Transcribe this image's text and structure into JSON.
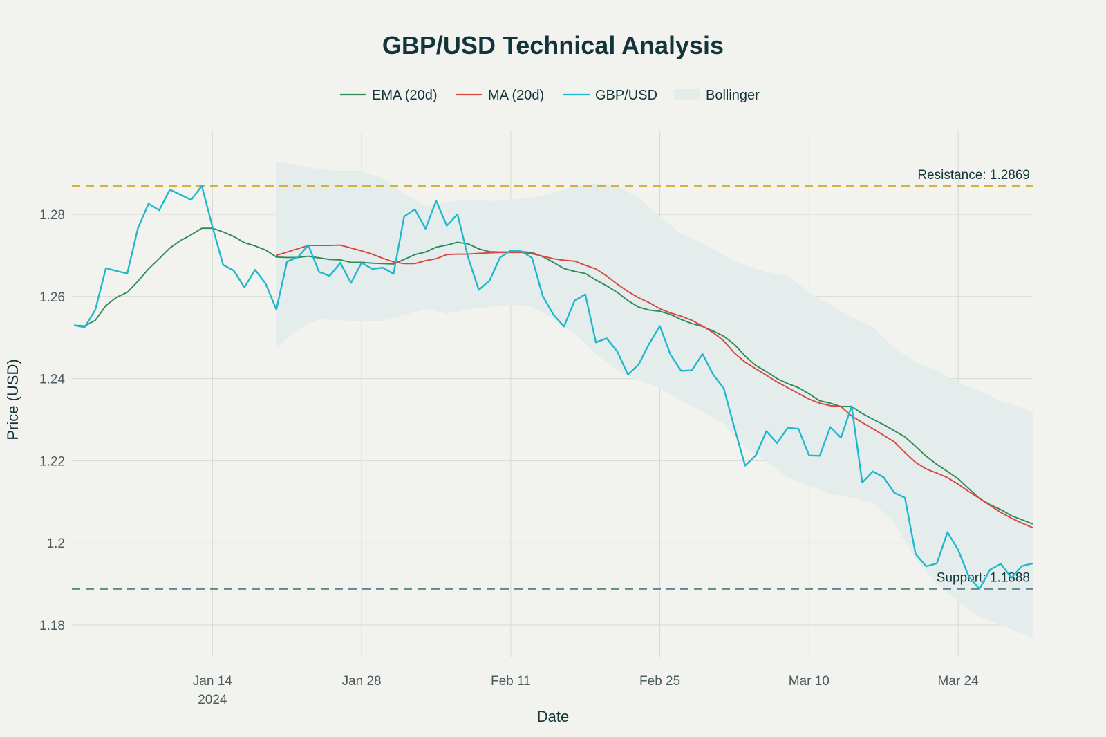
{
  "chart_data": {
    "type": "line",
    "title": "GBP/USD Technical Analysis",
    "xlabel": "Date",
    "ylabel": "Price (USD)",
    "x_range": [
      "2024-01-01",
      "2024-03-31"
    ],
    "ylim": [
      1.17,
      1.3
    ],
    "grid": true,
    "legend_position": "top-center",
    "legend": [
      {
        "name": "EMA (20d)",
        "kind": "line",
        "color": "#2e8b57"
      },
      {
        "name": "MA (20d)",
        "kind": "line",
        "color": "#d9453f"
      },
      {
        "name": "GBP/USD",
        "kind": "line",
        "color": "#1fb8cd"
      },
      {
        "name": "Bollinger",
        "kind": "band",
        "color": "#e4ecec"
      }
    ],
    "x_ticks": [
      {
        "date": "2024-01-14",
        "label": "Jan 14",
        "sublabel": "2024"
      },
      {
        "date": "2024-01-28",
        "label": "Jan 28",
        "sublabel": ""
      },
      {
        "date": "2024-02-11",
        "label": "Feb 11",
        "sublabel": ""
      },
      {
        "date": "2024-02-25",
        "label": "Feb 25",
        "sublabel": ""
      },
      {
        "date": "2024-03-10",
        "label": "Mar 10",
        "sublabel": ""
      },
      {
        "date": "2024-03-24",
        "label": "Mar 24",
        "sublabel": ""
      }
    ],
    "y_ticks": [
      {
        "value": 1.18,
        "label": "1.18"
      },
      {
        "value": 1.2,
        "label": "1.2"
      },
      {
        "value": 1.22,
        "label": "1.22"
      },
      {
        "value": 1.24,
        "label": "1.24"
      },
      {
        "value": 1.26,
        "label": "1.26"
      },
      {
        "value": 1.28,
        "label": "1.28"
      }
    ],
    "annotations": [
      {
        "label": "Resistance: 1.2869",
        "value": 1.2869,
        "color": "#d2b13c"
      },
      {
        "label": "Support: 1.1888",
        "value": 1.1888,
        "color": "#5d878f"
      }
    ],
    "series": [
      {
        "name": "GBP/USD",
        "color": "#1fb8cd",
        "x": [
          "2024-01-01",
          "2024-01-02",
          "2024-01-03",
          "2024-01-04",
          "2024-01-05",
          "2024-01-06",
          "2024-01-07",
          "2024-01-08",
          "2024-01-09",
          "2024-01-10",
          "2024-01-11",
          "2024-01-12",
          "2024-01-13",
          "2024-01-14",
          "2024-01-15",
          "2024-01-16",
          "2024-01-17",
          "2024-01-18",
          "2024-01-19",
          "2024-01-20",
          "2024-01-21",
          "2024-01-22",
          "2024-01-23",
          "2024-01-24",
          "2024-01-25",
          "2024-01-26",
          "2024-01-27",
          "2024-01-28",
          "2024-01-29",
          "2024-01-30",
          "2024-01-31",
          "2024-02-01",
          "2024-02-02",
          "2024-02-03",
          "2024-02-04",
          "2024-02-05",
          "2024-02-06",
          "2024-02-07",
          "2024-02-08",
          "2024-02-09",
          "2024-02-10",
          "2024-02-11",
          "2024-02-12",
          "2024-02-13",
          "2024-02-14",
          "2024-02-15",
          "2024-02-16",
          "2024-02-17",
          "2024-02-18",
          "2024-02-19",
          "2024-02-20",
          "2024-02-21",
          "2024-02-22",
          "2024-02-23",
          "2024-02-24",
          "2024-02-25",
          "2024-02-26",
          "2024-02-27",
          "2024-02-28",
          "2024-02-29",
          "2024-03-01",
          "2024-03-02",
          "2024-03-03",
          "2024-03-04",
          "2024-03-05",
          "2024-03-06",
          "2024-03-07",
          "2024-03-08",
          "2024-03-09",
          "2024-03-10",
          "2024-03-11",
          "2024-03-12",
          "2024-03-13",
          "2024-03-14",
          "2024-03-15",
          "2024-03-16",
          "2024-03-17",
          "2024-03-18",
          "2024-03-19",
          "2024-03-20",
          "2024-03-21",
          "2024-03-22",
          "2024-03-23",
          "2024-03-24",
          "2024-03-25",
          "2024-03-26",
          "2024-03-27",
          "2024-03-28",
          "2024-03-29",
          "2024-03-30",
          "2024-03-31"
        ],
        "values": [
          1.253,
          1.2525,
          1.2567,
          1.2669,
          1.2662,
          1.2656,
          1.2766,
          1.2826,
          1.281,
          1.286,
          1.2848,
          1.2835,
          1.2869,
          1.277,
          1.2677,
          1.2663,
          1.2622,
          1.2665,
          1.2631,
          1.2568,
          1.2685,
          1.2695,
          1.2725,
          1.266,
          1.265,
          1.2682,
          1.2633,
          1.2682,
          1.2667,
          1.267,
          1.2655,
          1.2795,
          1.2812,
          1.2765,
          1.2833,
          1.2772,
          1.28,
          1.2695,
          1.2616,
          1.2638,
          1.2695,
          1.2712,
          1.271,
          1.2694,
          1.2601,
          1.2556,
          1.2527,
          1.259,
          1.2605,
          1.2488,
          1.2498,
          1.2466,
          1.241,
          1.2434,
          1.2485,
          1.2528,
          1.2458,
          1.2419,
          1.242,
          1.246,
          1.241,
          1.2376,
          1.228,
          1.2188,
          1.2213,
          1.2272,
          1.2243,
          1.228,
          1.2278,
          1.2213,
          1.2212,
          1.2282,
          1.2256,
          1.2333,
          1.2147,
          1.2174,
          1.216,
          1.2122,
          1.211,
          1.1973,
          1.1943,
          1.195,
          1.2026,
          1.1983,
          1.1918,
          1.1888,
          1.1935,
          1.1949,
          1.1915,
          1.1944,
          1.195
        ]
      },
      {
        "name": "EMA (20d)",
        "color": "#2e8b57",
        "x": [
          "2024-01-01",
          "2024-01-02",
          "2024-01-03",
          "2024-01-04",
          "2024-01-05",
          "2024-01-06",
          "2024-01-07",
          "2024-01-08",
          "2024-01-09",
          "2024-01-10",
          "2024-01-11",
          "2024-01-12",
          "2024-01-13",
          "2024-01-14",
          "2024-01-15",
          "2024-01-16",
          "2024-01-17",
          "2024-01-18",
          "2024-01-19",
          "2024-01-20",
          "2024-01-21",
          "2024-01-22",
          "2024-01-23",
          "2024-01-24",
          "2024-01-25",
          "2024-01-26",
          "2024-01-27",
          "2024-01-28",
          "2024-01-29",
          "2024-01-30",
          "2024-01-31",
          "2024-02-01",
          "2024-02-02",
          "2024-02-03",
          "2024-02-04",
          "2024-02-05",
          "2024-02-06",
          "2024-02-07",
          "2024-02-08",
          "2024-02-09",
          "2024-02-10",
          "2024-02-11",
          "2024-02-12",
          "2024-02-13",
          "2024-02-14",
          "2024-02-15",
          "2024-02-16",
          "2024-02-17",
          "2024-02-18",
          "2024-02-19",
          "2024-02-20",
          "2024-02-21",
          "2024-02-22",
          "2024-02-23",
          "2024-02-24",
          "2024-02-25",
          "2024-02-26",
          "2024-02-27",
          "2024-02-28",
          "2024-02-29",
          "2024-03-01",
          "2024-03-02",
          "2024-03-03",
          "2024-03-04",
          "2024-03-05",
          "2024-03-06",
          "2024-03-07",
          "2024-03-08",
          "2024-03-09",
          "2024-03-10",
          "2024-03-11",
          "2024-03-12",
          "2024-03-13",
          "2024-03-14",
          "2024-03-15",
          "2024-03-16",
          "2024-03-17",
          "2024-03-18",
          "2024-03-19",
          "2024-03-20",
          "2024-03-21",
          "2024-03-22",
          "2024-03-23",
          "2024-03-24",
          "2024-03-25",
          "2024-03-26",
          "2024-03-27",
          "2024-03-28",
          "2024-03-29",
          "2024-03-30",
          "2024-03-31"
        ],
        "values": [
          1.253,
          1.2528,
          1.2542,
          1.2578,
          1.2598,
          1.261,
          1.2637,
          1.2667,
          1.2692,
          1.2718,
          1.2736,
          1.275,
          1.2766,
          1.2766,
          1.2757,
          1.2746,
          1.2731,
          1.2723,
          1.2713,
          1.2696,
          1.2695,
          1.2695,
          1.2698,
          1.2694,
          1.269,
          1.2689,
          1.2683,
          1.2683,
          1.2681,
          1.268,
          1.2679,
          1.269,
          1.2702,
          1.2708,
          1.272,
          1.2725,
          1.2732,
          1.2728,
          1.2716,
          1.2709,
          1.2708,
          1.2708,
          1.2709,
          1.2707,
          1.2697,
          1.2683,
          1.2668,
          1.2661,
          1.2656,
          1.264,
          1.2626,
          1.261,
          1.259,
          1.2574,
          1.2567,
          1.2564,
          1.2556,
          1.2544,
          1.2534,
          1.2527,
          1.2516,
          1.2503,
          1.2483,
          1.2455,
          1.2432,
          1.2417,
          1.24,
          1.2388,
          1.2378,
          1.2363,
          1.2346,
          1.234,
          1.2332,
          1.2332,
          1.2315,
          1.2301,
          1.2288,
          1.2273,
          1.2258,
          1.2235,
          1.2211,
          1.2191,
          1.2174,
          1.2156,
          1.2132,
          1.2108,
          1.2093,
          1.2081,
          1.2066,
          1.2056,
          1.2046
        ]
      },
      {
        "name": "MA (20d)",
        "color": "#d9453f",
        "x": [
          "2024-01-20",
          "2024-01-21",
          "2024-01-22",
          "2024-01-23",
          "2024-01-24",
          "2024-01-25",
          "2024-01-26",
          "2024-01-27",
          "2024-01-28",
          "2024-01-29",
          "2024-01-30",
          "2024-01-31",
          "2024-02-01",
          "2024-02-02",
          "2024-02-03",
          "2024-02-04",
          "2024-02-05",
          "2024-02-06",
          "2024-02-07",
          "2024-02-08",
          "2024-02-09",
          "2024-02-10",
          "2024-02-11",
          "2024-02-12",
          "2024-02-13",
          "2024-02-14",
          "2024-02-15",
          "2024-02-16",
          "2024-02-17",
          "2024-02-18",
          "2024-02-19",
          "2024-02-20",
          "2024-02-21",
          "2024-02-22",
          "2024-02-23",
          "2024-02-24",
          "2024-02-25",
          "2024-02-26",
          "2024-02-27",
          "2024-02-28",
          "2024-02-29",
          "2024-03-01",
          "2024-03-02",
          "2024-03-03",
          "2024-03-04",
          "2024-03-05",
          "2024-03-06",
          "2024-03-07",
          "2024-03-08",
          "2024-03-09",
          "2024-03-10",
          "2024-03-11",
          "2024-03-12",
          "2024-03-13",
          "2024-03-14",
          "2024-03-15",
          "2024-03-16",
          "2024-03-17",
          "2024-03-18",
          "2024-03-19",
          "2024-03-20",
          "2024-03-21",
          "2024-03-22",
          "2024-03-23",
          "2024-03-24",
          "2024-03-25",
          "2024-03-26",
          "2024-03-27",
          "2024-03-28",
          "2024-03-29",
          "2024-03-30",
          "2024-03-31"
        ],
        "values": [
          1.27,
          1.2708,
          1.2716,
          1.2724,
          1.2724,
          1.2724,
          1.2725,
          1.2718,
          1.2711,
          1.2703,
          1.2693,
          1.2684,
          1.268,
          1.268,
          1.2687,
          1.2692,
          1.2702,
          1.2703,
          1.2703,
          1.2705,
          1.2706,
          1.2707,
          1.2707,
          1.2707,
          1.2704,
          1.2698,
          1.2692,
          1.2688,
          1.2686,
          1.2676,
          1.2667,
          1.265,
          1.263,
          1.2612,
          1.2597,
          1.2585,
          1.257,
          1.256,
          1.2552,
          1.2542,
          1.2528,
          1.2512,
          1.2492,
          1.2462,
          1.244,
          1.2424,
          1.2408,
          1.2392,
          1.2378,
          1.2364,
          1.235,
          1.234,
          1.2334,
          1.2332,
          1.2309,
          1.2293,
          1.2278,
          1.2262,
          1.2246,
          1.222,
          1.2196,
          1.218,
          1.217,
          1.2159,
          1.2143,
          1.2125,
          1.2108,
          1.2091,
          1.2074,
          1.206,
          1.2048,
          1.2037
        ]
      }
    ],
    "bollinger": {
      "name": "Bollinger",
      "color": "#e4ecec",
      "x": [
        "2024-01-20",
        "2024-01-22",
        "2024-01-24",
        "2024-01-26",
        "2024-01-28",
        "2024-01-30",
        "2024-02-01",
        "2024-02-03",
        "2024-02-05",
        "2024-02-07",
        "2024-02-09",
        "2024-02-11",
        "2024-02-13",
        "2024-02-15",
        "2024-02-17",
        "2024-02-19",
        "2024-02-21",
        "2024-02-23",
        "2024-02-25",
        "2024-02-27",
        "2024-02-29",
        "2024-03-02",
        "2024-03-04",
        "2024-03-06",
        "2024-03-08",
        "2024-03-10",
        "2024-03-12",
        "2024-03-14",
        "2024-03-16",
        "2024-03-18",
        "2024-03-20",
        "2024-03-22",
        "2024-03-24",
        "2024-03-26",
        "2024-03-28",
        "2024-03-31"
      ],
      "upper": [
        1.2928,
        1.2921,
        1.291,
        1.2905,
        1.2905,
        1.2888,
        1.285,
        1.282,
        1.283,
        1.2835,
        1.2832,
        1.2836,
        1.284,
        1.2852,
        1.2868,
        1.2875,
        1.287,
        1.284,
        1.2795,
        1.2752,
        1.273,
        1.27,
        1.2675,
        1.266,
        1.265,
        1.261,
        1.258,
        1.255,
        1.2525,
        1.2475,
        1.244,
        1.242,
        1.239,
        1.237,
        1.2345,
        1.232
      ],
      "lower": [
        1.2475,
        1.252,
        1.2545,
        1.2542,
        1.254,
        1.254,
        1.2555,
        1.257,
        1.2558,
        1.2568,
        1.2575,
        1.258,
        1.2575,
        1.2545,
        1.251,
        1.246,
        1.242,
        1.2395,
        1.2378,
        1.2345,
        1.232,
        1.229,
        1.2232,
        1.22,
        1.216,
        1.214,
        1.212,
        1.211,
        1.2098,
        1.205,
        1.196,
        1.19,
        1.1858,
        1.182,
        1.18,
        1.177
      ]
    }
  }
}
